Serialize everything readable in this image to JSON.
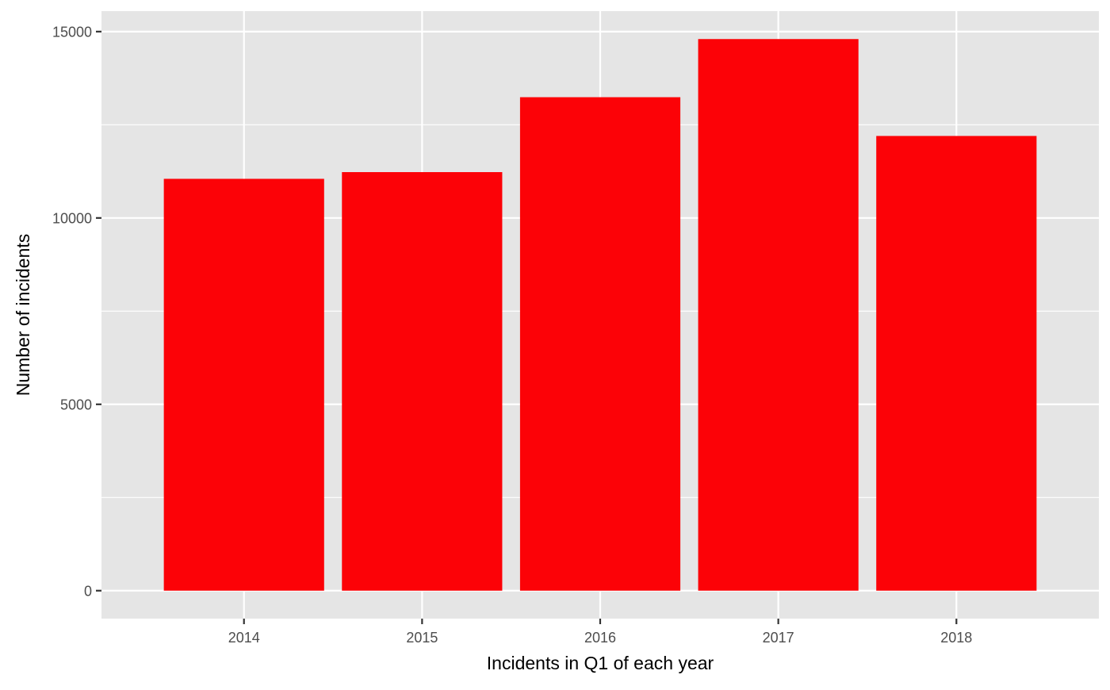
{
  "chart_data": {
    "type": "bar",
    "categories": [
      "2014",
      "2015",
      "2016",
      "2017",
      "2018"
    ],
    "values": [
      11050,
      11230,
      13240,
      14800,
      12200
    ],
    "xlabel": "Incidents in Q1 of each year",
    "ylabel": "Number of incidents",
    "ylim": [
      -750,
      15550
    ],
    "yticks": [
      0,
      5000,
      10000,
      15000
    ],
    "grid": true,
    "bar_color": "#FC0207",
    "panel_background": "#E5E5E5",
    "grid_color": "#FFFFFF"
  }
}
